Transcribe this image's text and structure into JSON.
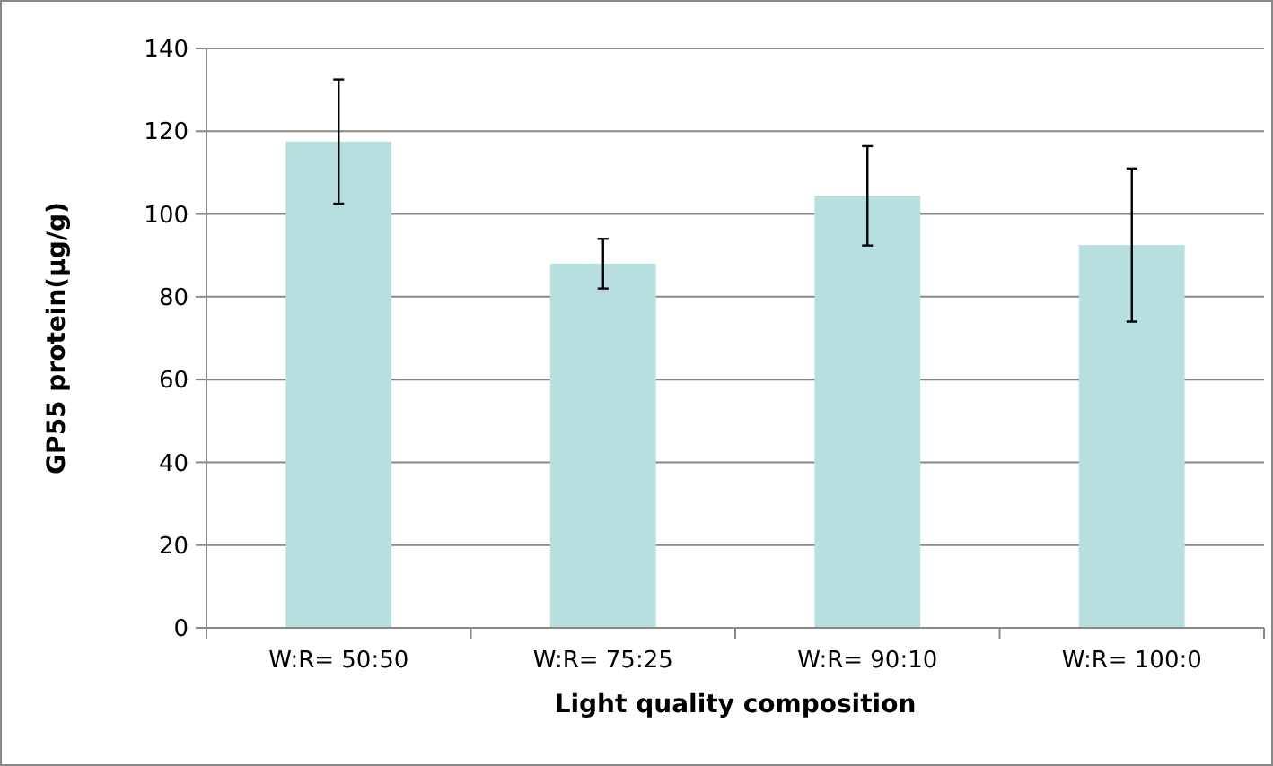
{
  "chart_data": {
    "type": "bar",
    "xlabel": "Light quality composition",
    "ylabel": "GP55 protein(μg/g)",
    "categories": [
      "W:R= 50:50",
      "W:R= 75:25",
      "W:R= 90:10",
      "W:R= 100:0"
    ],
    "values": [
      117.5,
      88,
      104.4,
      92.5
    ],
    "errors": [
      15,
      6,
      12,
      18.5
    ],
    "color": "#b7dfe0",
    "ylim": [
      0,
      140
    ],
    "yticks": [
      0,
      20,
      40,
      60,
      80,
      100,
      120,
      140
    ],
    "grid": "y"
  }
}
